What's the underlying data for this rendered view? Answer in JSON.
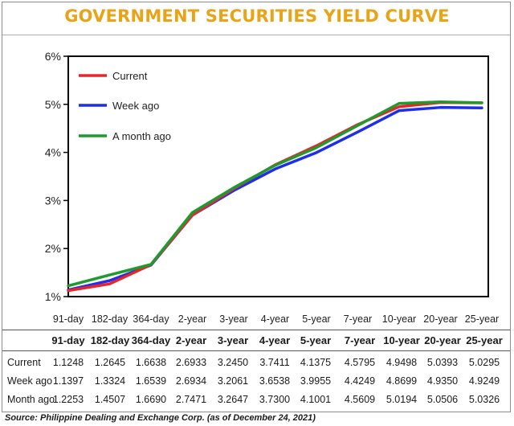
{
  "title": "GOVERNMENT SECURITIES YIELD CURVE",
  "source": "Source: Philippine Dealing and Exchange Corp. (as of December  24, 2021)",
  "colors": {
    "title": "#e8a317",
    "current": "#e8262a",
    "week_ago": "#1f2ee8",
    "month_ago": "#1f9a2e"
  },
  "chart_data": {
    "type": "line",
    "categories": [
      "91-day",
      "182-day",
      "364-day",
      "2-year",
      "3-year",
      "4-year",
      "5-year",
      "7-year",
      "10-year",
      "20-year",
      "25-year"
    ],
    "y_ticks": [
      "1%",
      "2%",
      "3%",
      "4%",
      "5%",
      "6%"
    ],
    "ylim": [
      1,
      6
    ],
    "grid": false,
    "legend_position": "top-left",
    "series": [
      {
        "name": "Current",
        "color": "#e8262a",
        "values": [
          1.1248,
          1.2645,
          1.6638,
          2.6933,
          3.245,
          3.7411,
          4.1375,
          4.5795,
          4.9498,
          5.0393,
          5.0295
        ]
      },
      {
        "name": "Week ago",
        "color": "#1f2ee8",
        "values": [
          1.1397,
          1.3324,
          1.6539,
          2.6934,
          3.2061,
          3.6538,
          3.9955,
          4.4249,
          4.8699,
          4.935,
          4.9249
        ]
      },
      {
        "name": "A month ago",
        "color": "#1f9a2e",
        "values": [
          1.2253,
          1.4507,
          1.669,
          2.7471,
          3.2647,
          3.73,
          4.1001,
          4.5609,
          5.0194,
          5.0506,
          5.0326
        ]
      }
    ]
  },
  "table": {
    "headers": [
      "91-day",
      "182-day",
      "364-day",
      "2-year",
      "3-year",
      "4-year",
      "5-year",
      "7-year",
      "10-year",
      "20-year",
      "25-year"
    ],
    "rows": [
      {
        "label": "Current",
        "values": [
          "1.1248",
          "1.2645",
          "1.6638",
          "2.6933",
          "3.2450",
          "3.7411",
          "4.1375",
          "4.5795",
          "4.9498",
          "5.0393",
          "5.0295"
        ]
      },
      {
        "label": "Week ago",
        "values": [
          "1.1397",
          "1.3324",
          "1.6539",
          "2.6934",
          "3.2061",
          "3.6538",
          "3.9955",
          "4.4249",
          "4.8699",
          "4.9350",
          "4.9249"
        ]
      },
      {
        "label": "Month ago",
        "values": [
          "1.2253",
          "1.4507",
          "1.6690",
          "2.7471",
          "3.2647",
          "3.7300",
          "4.1001",
          "4.5609",
          "5.0194",
          "5.0506",
          "5.0326"
        ]
      }
    ]
  }
}
